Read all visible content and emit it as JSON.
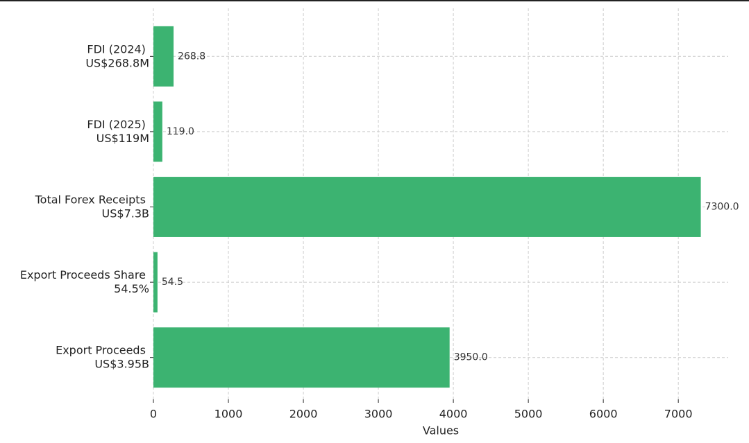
{
  "chart_data": {
    "type": "barh",
    "orientation": "horizontal",
    "categories": [
      "FDI (2024)\nUS$268.8M",
      "FDI (2025)\nUS$119M",
      "Total Forex Receipts\nUS$7.3B",
      "Export Proceeds Share\n54.5%",
      "Export Proceeds\nUS$3.95B"
    ],
    "values": [
      268.8,
      119,
      7300,
      54.5,
      3950
    ],
    "value_labels": [
      "268.8",
      "119.0",
      "7300.0",
      "54.5",
      "3950.0"
    ],
    "color": "#3cb371",
    "xlabel": "Values",
    "xlim": [
      0,
      7665
    ],
    "xticks": [
      0,
      1000,
      2000,
      3000,
      4000,
      5000,
      6000,
      7000
    ],
    "grid": true
  }
}
